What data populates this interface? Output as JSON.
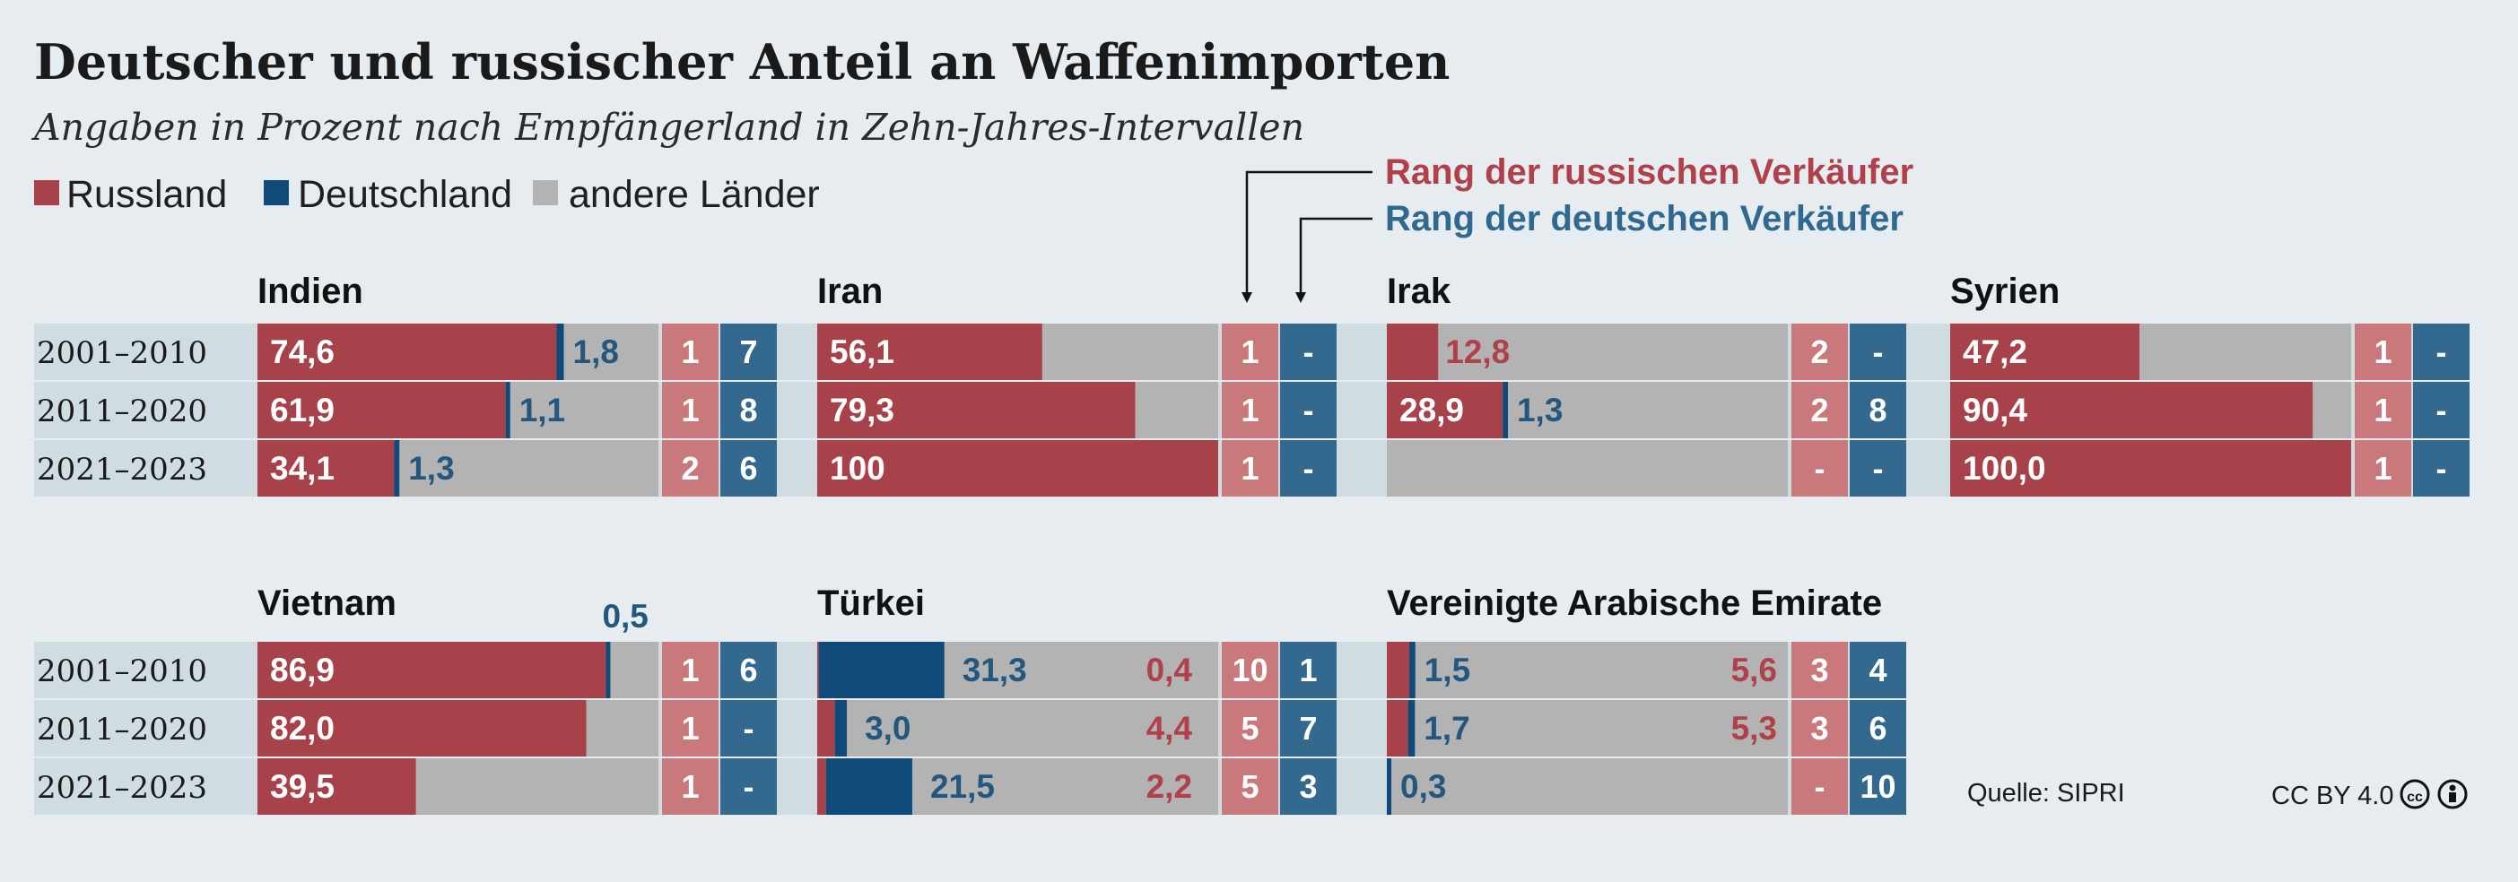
{
  "title": "Deutscher und russischer Anteil an Waffenimporten",
  "subtitle": "Angaben in Prozent nach Empfängerland in Zehn-Jahres-Intervallen",
  "legend": {
    "russia": "Russland",
    "germany": "Deutschland",
    "others": "andere Länder"
  },
  "rank_legend": {
    "russia": "Rang der russischen Verkäufer",
    "germany": "Rang der deutschen Verkäufer"
  },
  "colors": {
    "russia": "#a8424a",
    "germany": "#0f4a7a",
    "others": "#b3b3b3",
    "rank_russia": "#c9797b",
    "rank_germany": "#33698f",
    "band": "#cfdde3"
  },
  "periods": [
    "2001–2010",
    "2011–2020",
    "2021–2023"
  ],
  "source": "Quelle: SIPRI",
  "license": "CC BY 4.0",
  "chart_data": [
    {
      "type": "bar",
      "country": "Indien",
      "categories": [
        "2001–2010",
        "2011–2020",
        "2021–2023"
      ],
      "series": [
        {
          "name": "Russland",
          "values": [
            74.6,
            61.9,
            34.1
          ],
          "labels": [
            "74,6",
            "61,9",
            "34,1"
          ]
        },
        {
          "name": "Deutschland",
          "values": [
            1.8,
            1.1,
            1.3
          ],
          "labels": [
            "1,8",
            "1,1",
            "1,3"
          ]
        }
      ],
      "rank_russia": [
        "1",
        "1",
        "2"
      ],
      "rank_germany": [
        "7",
        "8",
        "6"
      ]
    },
    {
      "type": "bar",
      "country": "Iran",
      "categories": [
        "2001–2010",
        "2011–2020",
        "2021–2023"
      ],
      "series": [
        {
          "name": "Russland",
          "values": [
            56.1,
            79.3,
            100
          ],
          "labels": [
            "56,1",
            "79,3",
            "100"
          ]
        },
        {
          "name": "Deutschland",
          "values": [
            0,
            0,
            0
          ],
          "labels": [
            "",
            "",
            ""
          ]
        }
      ],
      "rank_russia": [
        "1",
        "1",
        "1"
      ],
      "rank_germany": [
        "-",
        "-",
        "-"
      ]
    },
    {
      "type": "bar",
      "country": "Irak",
      "categories": [
        "2001–2010",
        "2011–2020",
        "2021–2023"
      ],
      "series": [
        {
          "name": "Russland",
          "values": [
            12.8,
            28.9,
            0
          ],
          "labels": [
            "12,8",
            "28,9",
            ""
          ]
        },
        {
          "name": "Deutschland",
          "values": [
            0,
            1.3,
            0
          ],
          "labels": [
            "",
            "1,3",
            ""
          ]
        }
      ],
      "rank_russia": [
        "2",
        "2",
        "-"
      ],
      "rank_germany": [
        "-",
        "8",
        "-"
      ]
    },
    {
      "type": "bar",
      "country": "Syrien",
      "categories": [
        "2001–2010",
        "2011–2020",
        "2021–2023"
      ],
      "series": [
        {
          "name": "Russland",
          "values": [
            47.2,
            90.4,
            100.0
          ],
          "labels": [
            "47,2",
            "90,4",
            "100,0"
          ]
        },
        {
          "name": "Deutschland",
          "values": [
            0,
            0,
            0
          ],
          "labels": [
            "",
            "",
            ""
          ]
        }
      ],
      "rank_russia": [
        "1",
        "1",
        "1"
      ],
      "rank_germany": [
        "-",
        "-",
        "-"
      ]
    },
    {
      "type": "bar",
      "country": "Vietnam",
      "categories": [
        "2001–2010",
        "2011–2020",
        "2021–2023"
      ],
      "series": [
        {
          "name": "Russland",
          "values": [
            86.9,
            82.0,
            39.5
          ],
          "labels": [
            "86,9",
            "82,0",
            "39,5"
          ]
        },
        {
          "name": "Deutschland",
          "values": [
            0.5,
            0,
            0
          ],
          "labels": [
            "0,5",
            "",
            ""
          ]
        }
      ],
      "rank_russia": [
        "1",
        "1",
        "1"
      ],
      "rank_germany": [
        "6",
        "-",
        "-"
      ]
    },
    {
      "type": "bar",
      "country": "Türkei",
      "categories": [
        "2001–2010",
        "2011–2020",
        "2021–2023"
      ],
      "series": [
        {
          "name": "Russland",
          "values": [
            0.4,
            4.4,
            2.2
          ],
          "labels": [
            "0,4",
            "4,4",
            "2,2"
          ]
        },
        {
          "name": "Deutschland",
          "values": [
            31.3,
            3.0,
            21.5
          ],
          "labels": [
            "31,3",
            "3,0",
            "21,5"
          ]
        }
      ],
      "rank_russia": [
        "10",
        "5",
        "5"
      ],
      "rank_germany": [
        "1",
        "7",
        "3"
      ]
    },
    {
      "type": "bar",
      "country": "Vereinigte Arabische Emirate",
      "categories": [
        "2001–2010",
        "2011–2020",
        "2021–2023"
      ],
      "series": [
        {
          "name": "Russland",
          "values": [
            5.6,
            5.3,
            0
          ],
          "labels": [
            "5,6",
            "5,3",
            ""
          ]
        },
        {
          "name": "Deutschland",
          "values": [
            1.5,
            1.7,
            0.3
          ],
          "labels": [
            "1,5",
            "1,7",
            "0,3"
          ]
        }
      ],
      "rank_russia": [
        "3",
        "3",
        "-"
      ],
      "rank_germany": [
        "4",
        "6",
        "10"
      ]
    }
  ]
}
